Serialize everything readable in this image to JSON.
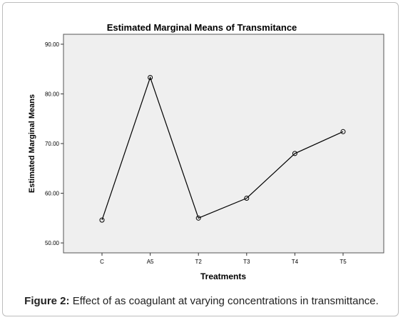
{
  "chart_data": {
    "type": "line",
    "title": "Estimated Marginal Means of Transmitance",
    "xlabel": "Treatments",
    "ylabel": "Estimated Marginal Means",
    "categories": [
      "C",
      "A5",
      "T2",
      "T3",
      "T4",
      "T5"
    ],
    "values": [
      54.6,
      83.3,
      55.0,
      59.0,
      68.0,
      72.4
    ],
    "ylim": [
      48.0,
      92.0
    ],
    "yticks": [
      "50.00",
      "60.00",
      "70.00",
      "80.00",
      "90.00"
    ],
    "ytick_values": [
      50,
      60,
      70,
      80,
      90
    ],
    "grid": false,
    "plot_background": "#efefef",
    "line_color": "#000000"
  },
  "caption": {
    "label": "Figure 2:",
    "text": "Effect of as coagulant at varying concentrations in transmittance."
  }
}
